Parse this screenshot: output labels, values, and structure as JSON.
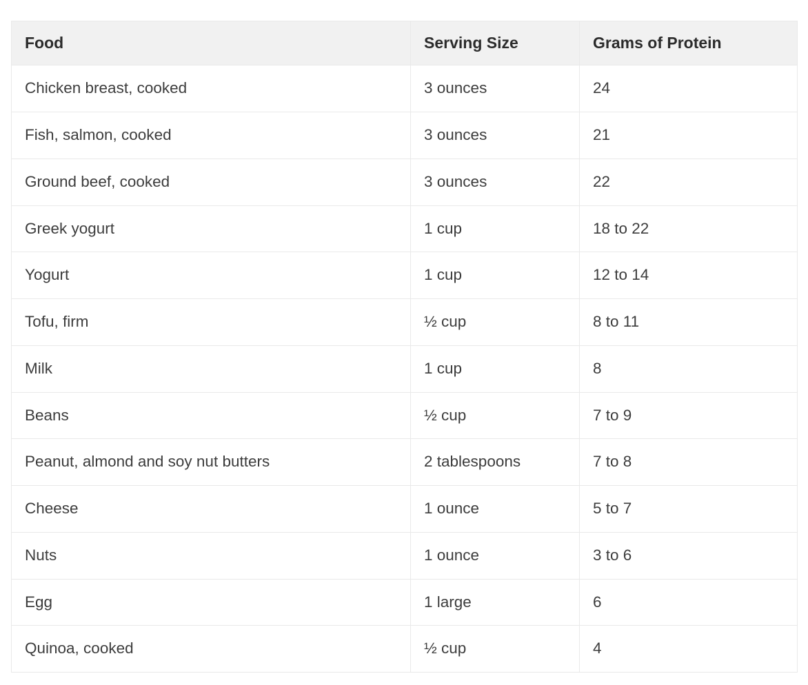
{
  "table": {
    "headers": [
      "Food",
      "Serving Size",
      "Grams of Protein"
    ],
    "rows": [
      [
        "Chicken breast, cooked",
        "3 ounces",
        "24"
      ],
      [
        "Fish, salmon, cooked",
        "3 ounces",
        "21"
      ],
      [
        "Ground beef, cooked",
        "3 ounces",
        "22"
      ],
      [
        "Greek yogurt",
        "1 cup",
        "18 to 22"
      ],
      [
        "Yogurt",
        "1 cup",
        "12 to 14"
      ],
      [
        "Tofu, firm",
        "½ cup",
        "8 to 11"
      ],
      [
        "Milk",
        "1 cup",
        "8"
      ],
      [
        "Beans",
        "½ cup",
        "7 to 9"
      ],
      [
        "Peanut, almond and soy nut butters",
        "2 tablespoons",
        "7 to 8"
      ],
      [
        "Cheese",
        "1 ounce",
        "5 to 7"
      ],
      [
        "Nuts",
        "1 ounce",
        "3 to 6"
      ],
      [
        "Egg",
        "1 large",
        "6"
      ],
      [
        "Quinoa, cooked",
        "½ cup",
        "4"
      ]
    ]
  },
  "colors": {
    "header_bg": "#f1f1f1",
    "border": "#e9e9e9",
    "text": "#3c3c3c",
    "header_text": "#2b2b2b"
  }
}
